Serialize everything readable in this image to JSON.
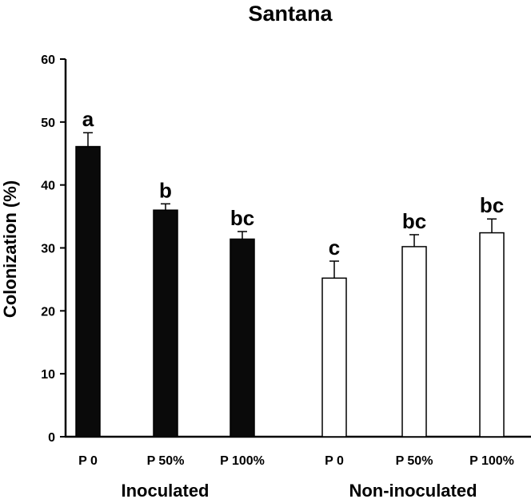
{
  "chart_data": {
    "type": "bar",
    "title": "Santana",
    "ylabel": "Colonization (%)",
    "xlabel": "",
    "ylim": [
      0,
      60
    ],
    "yticks": [
      "0",
      "10",
      "20",
      "30",
      "40",
      "50",
      "60"
    ],
    "grid": false,
    "categories": [
      "P 0",
      "P 50%",
      "P 100%",
      "P 0",
      "P 50%",
      "P 100%"
    ],
    "groups": [
      {
        "label": "Inoculated",
        "fill": "#0a0a0a",
        "bars": [
          0,
          1,
          2
        ]
      },
      {
        "label": "Non-inoculated",
        "fill": "#ffffff",
        "bars": [
          3,
          4,
          5
        ]
      }
    ],
    "values": [
      46.1,
      36.0,
      31.4,
      25.2,
      30.2,
      32.4
    ],
    "errors": [
      2.2,
      1.0,
      1.2,
      2.7,
      1.9,
      2.2
    ],
    "significance_letters": [
      "a",
      "b",
      "bc",
      "c",
      "bc",
      "bc"
    ]
  }
}
